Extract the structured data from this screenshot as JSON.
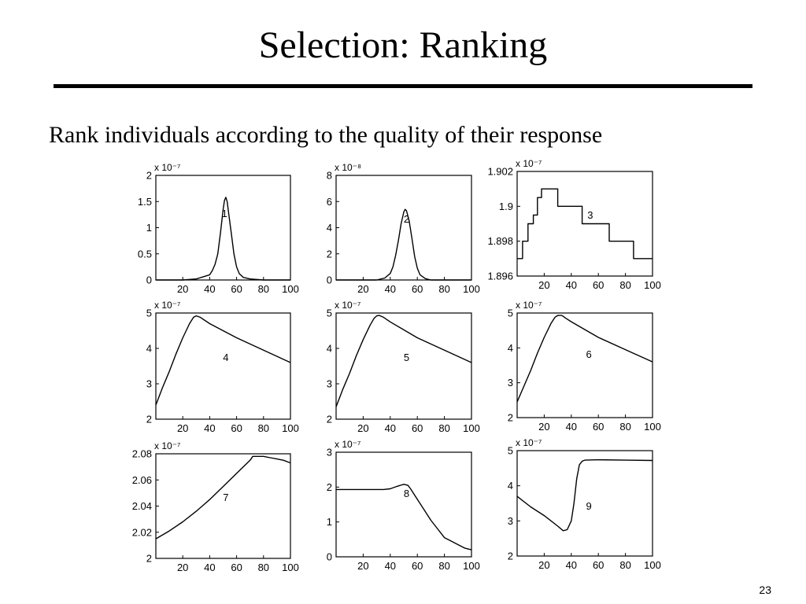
{
  "slide": {
    "title": "Selection: Ranking",
    "bullet": "Rank individuals according to the quality of their response",
    "page_number": "23"
  },
  "chart_data": [
    {
      "type": "line",
      "annotation": "1",
      "exponent": "x 10⁻⁷",
      "xlim": [
        0,
        100
      ],
      "ylim": [
        0,
        2
      ],
      "x_ticks": [
        20,
        40,
        60,
        80,
        100
      ],
      "x_tick_labels": [
        "20",
        "40",
        "60",
        "80",
        "100"
      ],
      "y_ticks": [
        0,
        0.5,
        1,
        1.5,
        2
      ],
      "y_tick_labels": [
        "0",
        "0.5",
        "1",
        "1.5",
        "2"
      ],
      "series": [
        {
          "x": [
            0,
            20,
            30,
            40,
            42,
            44,
            46,
            48,
            50,
            51,
            52,
            53,
            54,
            56,
            58,
            60,
            62,
            65,
            70,
            80,
            100
          ],
          "y": [
            0,
            0,
            0.02,
            0.1,
            0.18,
            0.3,
            0.5,
            0.9,
            1.35,
            1.52,
            1.58,
            1.5,
            1.3,
            0.9,
            0.5,
            0.25,
            0.12,
            0.05,
            0.02,
            0,
            0
          ]
        }
      ]
    },
    {
      "type": "line",
      "annotation": "2",
      "exponent": "x 10⁻⁸",
      "xlim": [
        0,
        100
      ],
      "ylim": [
        0,
        8
      ],
      "x_ticks": [
        20,
        40,
        60,
        80,
        100
      ],
      "x_tick_labels": [
        "20",
        "40",
        "60",
        "80",
        "100"
      ],
      "y_ticks": [
        0,
        2,
        4,
        6,
        8
      ],
      "y_tick_labels": [
        "0",
        "2",
        "4",
        "6",
        "8"
      ],
      "series": [
        {
          "x": [
            0,
            30,
            36,
            40,
            42,
            44,
            46,
            48,
            50,
            51,
            52,
            54,
            56,
            58,
            60,
            62,
            66,
            70,
            80,
            100
          ],
          "y": [
            0,
            0,
            0.15,
            0.5,
            1.0,
            1.9,
            3.0,
            4.3,
            5.2,
            5.4,
            5.3,
            4.5,
            3.2,
            1.8,
            0.9,
            0.4,
            0.1,
            0,
            0,
            0
          ]
        }
      ]
    },
    {
      "type": "line",
      "annotation": "3",
      "exponent": "x 10⁻⁷",
      "xlim": [
        0,
        100
      ],
      "ylim": [
        1.896,
        1.902
      ],
      "x_ticks": [
        20,
        40,
        60,
        80,
        100
      ],
      "x_tick_labels": [
        "20",
        "40",
        "60",
        "80",
        "100"
      ],
      "y_ticks": [
        1.896,
        1.898,
        1.9,
        1.902
      ],
      "y_tick_labels": [
        "1.896",
        "1.898",
        "1.9",
        "1.902"
      ],
      "series": [
        {
          "x": [
            0,
            4,
            4,
            8,
            8,
            12,
            12,
            15,
            15,
            18,
            18,
            30,
            30,
            48,
            48,
            68,
            68,
            86,
            86,
            100
          ],
          "y": [
            1.897,
            1.897,
            1.898,
            1.898,
            1.899,
            1.899,
            1.8995,
            1.8995,
            1.9005,
            1.9005,
            1.901,
            1.901,
            1.9,
            1.9,
            1.899,
            1.899,
            1.898,
            1.898,
            1.897,
            1.897
          ]
        }
      ]
    },
    {
      "type": "line",
      "annotation": "4",
      "exponent": "x 10⁻⁷",
      "xlim": [
        0,
        100
      ],
      "ylim": [
        2,
        5
      ],
      "x_ticks": [
        20,
        40,
        60,
        80,
        100
      ],
      "x_tick_labels": [
        "20",
        "40",
        "60",
        "80",
        "100"
      ],
      "y_ticks": [
        2,
        3,
        4,
        5
      ],
      "y_tick_labels": [
        "2",
        "3",
        "4",
        "5"
      ],
      "series": [
        {
          "x": [
            0,
            5,
            10,
            15,
            20,
            25,
            28,
            30,
            33,
            40,
            60,
            80,
            100
          ],
          "y": [
            2.4,
            2.9,
            3.35,
            3.85,
            4.3,
            4.7,
            4.88,
            4.92,
            4.88,
            4.7,
            4.3,
            3.95,
            3.6
          ]
        }
      ]
    },
    {
      "type": "line",
      "annotation": "5",
      "exponent": "x 10⁻⁷",
      "xlim": [
        0,
        100
      ],
      "ylim": [
        2,
        5
      ],
      "x_ticks": [
        20,
        40,
        60,
        80,
        100
      ],
      "x_tick_labels": [
        "20",
        "40",
        "60",
        "80",
        "100"
      ],
      "y_ticks": [
        2,
        3,
        4,
        5
      ],
      "y_tick_labels": [
        "2",
        "3",
        "4",
        "5"
      ],
      "series": [
        {
          "x": [
            0,
            5,
            10,
            15,
            20,
            25,
            28,
            30,
            32,
            35,
            40,
            60,
            80,
            100
          ],
          "y": [
            2.35,
            2.85,
            3.3,
            3.8,
            4.25,
            4.65,
            4.85,
            4.92,
            4.93,
            4.88,
            4.75,
            4.3,
            3.95,
            3.6
          ]
        }
      ]
    },
    {
      "type": "line",
      "annotation": "6",
      "exponent": "x 10⁻⁷",
      "xlim": [
        0,
        100
      ],
      "ylim": [
        2,
        5
      ],
      "x_ticks": [
        20,
        40,
        60,
        80,
        100
      ],
      "x_tick_labels": [
        "20",
        "40",
        "60",
        "80",
        "100"
      ],
      "y_ticks": [
        2,
        3,
        4,
        5
      ],
      "y_tick_labels": [
        "2",
        "3",
        "4",
        "5"
      ],
      "series": [
        {
          "x": [
            0,
            5,
            10,
            15,
            20,
            25,
            28,
            30,
            33,
            36,
            40,
            60,
            80,
            100
          ],
          "y": [
            2.45,
            2.9,
            3.35,
            3.85,
            4.3,
            4.7,
            4.88,
            4.93,
            4.93,
            4.85,
            4.75,
            4.3,
            3.95,
            3.6
          ]
        }
      ]
    },
    {
      "type": "line",
      "annotation": "7",
      "exponent": "x 10⁻⁷",
      "xlim": [
        0,
        100
      ],
      "ylim": [
        2,
        2.08
      ],
      "x_ticks": [
        20,
        40,
        60,
        80,
        100
      ],
      "x_tick_labels": [
        "20",
        "40",
        "60",
        "80",
        "100"
      ],
      "y_ticks": [
        2,
        2.02,
        2.04,
        2.06,
        2.08
      ],
      "y_tick_labels": [
        "2",
        "2.02",
        "2.04",
        "2.06",
        "2.08"
      ],
      "series": [
        {
          "x": [
            0,
            10,
            20,
            30,
            40,
            50,
            60,
            70,
            72,
            80,
            85,
            90,
            95,
            100
          ],
          "y": [
            2.015,
            2.021,
            2.028,
            2.036,
            2.045,
            2.055,
            2.065,
            2.075,
            2.078,
            2.078,
            2.077,
            2.076,
            2.075,
            2.073
          ]
        }
      ]
    },
    {
      "type": "line",
      "annotation": "8",
      "exponent": "x 10⁻⁷",
      "xlim": [
        0,
        100
      ],
      "ylim": [
        0,
        3
      ],
      "x_ticks": [
        20,
        40,
        60,
        80,
        100
      ],
      "x_tick_labels": [
        "20",
        "40",
        "60",
        "80",
        "100"
      ],
      "y_ticks": [
        0,
        1,
        2,
        3
      ],
      "y_tick_labels": [
        "0",
        "1",
        "2",
        "3"
      ],
      "series": [
        {
          "x": [
            0,
            20,
            35,
            40,
            45,
            50,
            53,
            55,
            60,
            65,
            70,
            75,
            80,
            85,
            90,
            95,
            100
          ],
          "y": [
            1.93,
            1.93,
            1.93,
            1.95,
            2.02,
            2.08,
            2.05,
            1.95,
            1.65,
            1.35,
            1.05,
            0.8,
            0.55,
            0.45,
            0.35,
            0.25,
            0.2
          ]
        }
      ]
    },
    {
      "type": "line",
      "annotation": "9",
      "exponent": "x 10⁻⁷",
      "xlim": [
        0,
        100
      ],
      "ylim": [
        2,
        5
      ],
      "x_ticks": [
        20,
        40,
        60,
        80,
        100
      ],
      "x_tick_labels": [
        "20",
        "40",
        "60",
        "80",
        "100"
      ],
      "y_ticks": [
        2,
        3,
        4,
        5
      ],
      "y_tick_labels": [
        "2",
        "3",
        "4",
        "5"
      ],
      "series": [
        {
          "x": [
            0,
            10,
            20,
            30,
            34,
            37,
            40,
            42,
            44,
            46,
            48,
            50,
            60,
            80,
            100
          ],
          "y": [
            3.7,
            3.4,
            3.15,
            2.85,
            2.72,
            2.75,
            3.0,
            3.5,
            4.2,
            4.6,
            4.7,
            4.73,
            4.74,
            4.73,
            4.72
          ]
        }
      ]
    }
  ]
}
